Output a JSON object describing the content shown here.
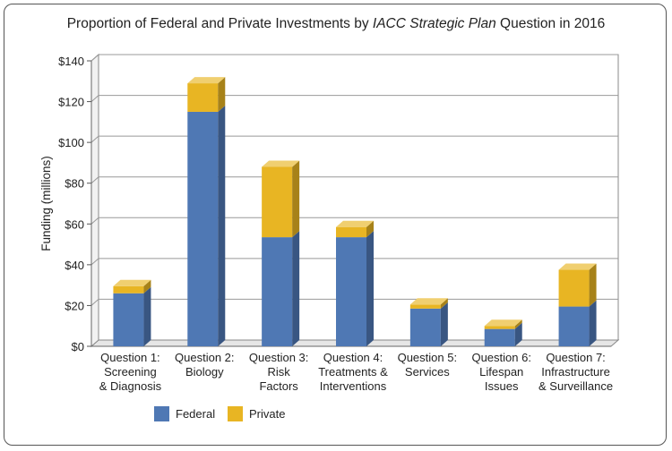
{
  "chart_data": {
    "type": "bar",
    "stacked": true,
    "title_parts": [
      {
        "text": "Proportion of Federal and Private Investments by ",
        "italic": false
      },
      {
        "text": "IACC Strategic Plan",
        "italic": true
      },
      {
        "text": " Question in 2016",
        "italic": false
      }
    ],
    "ylabel": "Funding (millions)",
    "ylim": [
      0,
      140
    ],
    "yticks": [
      0,
      20,
      40,
      60,
      80,
      100,
      120,
      140
    ],
    "ytick_labels": [
      "$0",
      "$20",
      "$40",
      "$60",
      "$80",
      "$100",
      "$120",
      "$140"
    ],
    "categories": [
      [
        "Question 1:",
        "Screening",
        "& Diagnosis"
      ],
      [
        "Question 2:",
        "Biology"
      ],
      [
        "Question 3:",
        "Risk",
        "Factors"
      ],
      [
        "Question 4:",
        "Treatments &",
        "Interventions"
      ],
      [
        "Question 5:",
        "Services"
      ],
      [
        "Question 6:",
        "Lifespan",
        "Issues"
      ],
      [
        "Question 7:",
        "Infrastructure",
        "& Surveillance"
      ]
    ],
    "series": [
      {
        "name": "Federal",
        "values": [
          26,
          115,
          53.5,
          53.5,
          18.5,
          8.5,
          19.5
        ],
        "color": "#4f78b4"
      },
      {
        "name": "Private",
        "values": [
          3.5,
          14,
          34.5,
          5,
          2,
          1.5,
          18
        ],
        "color": "#e8b523"
      }
    ],
    "grid": true,
    "legend_position": "bottom"
  }
}
